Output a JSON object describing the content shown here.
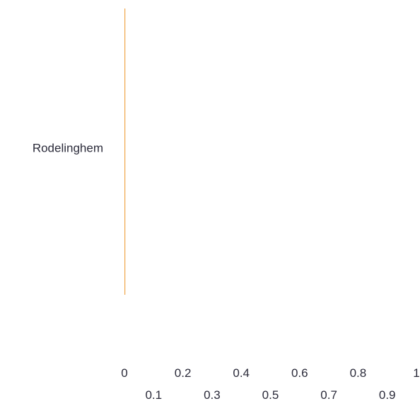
{
  "chart_data": {
    "type": "bar",
    "orientation": "horizontal",
    "categories": [
      "Rodelinghem"
    ],
    "values": [
      0
    ],
    "xlim": [
      0,
      1
    ],
    "x_ticks_row1": [
      "0",
      "0.2",
      "0.4",
      "0.6",
      "0.8",
      "1"
    ],
    "x_ticks_row2": [
      "0.1",
      "0.3",
      "0.5",
      "0.7",
      "0.9"
    ],
    "grid": false,
    "colors": {
      "bar": "#f0a64a",
      "text": "#2b2b3a"
    }
  }
}
